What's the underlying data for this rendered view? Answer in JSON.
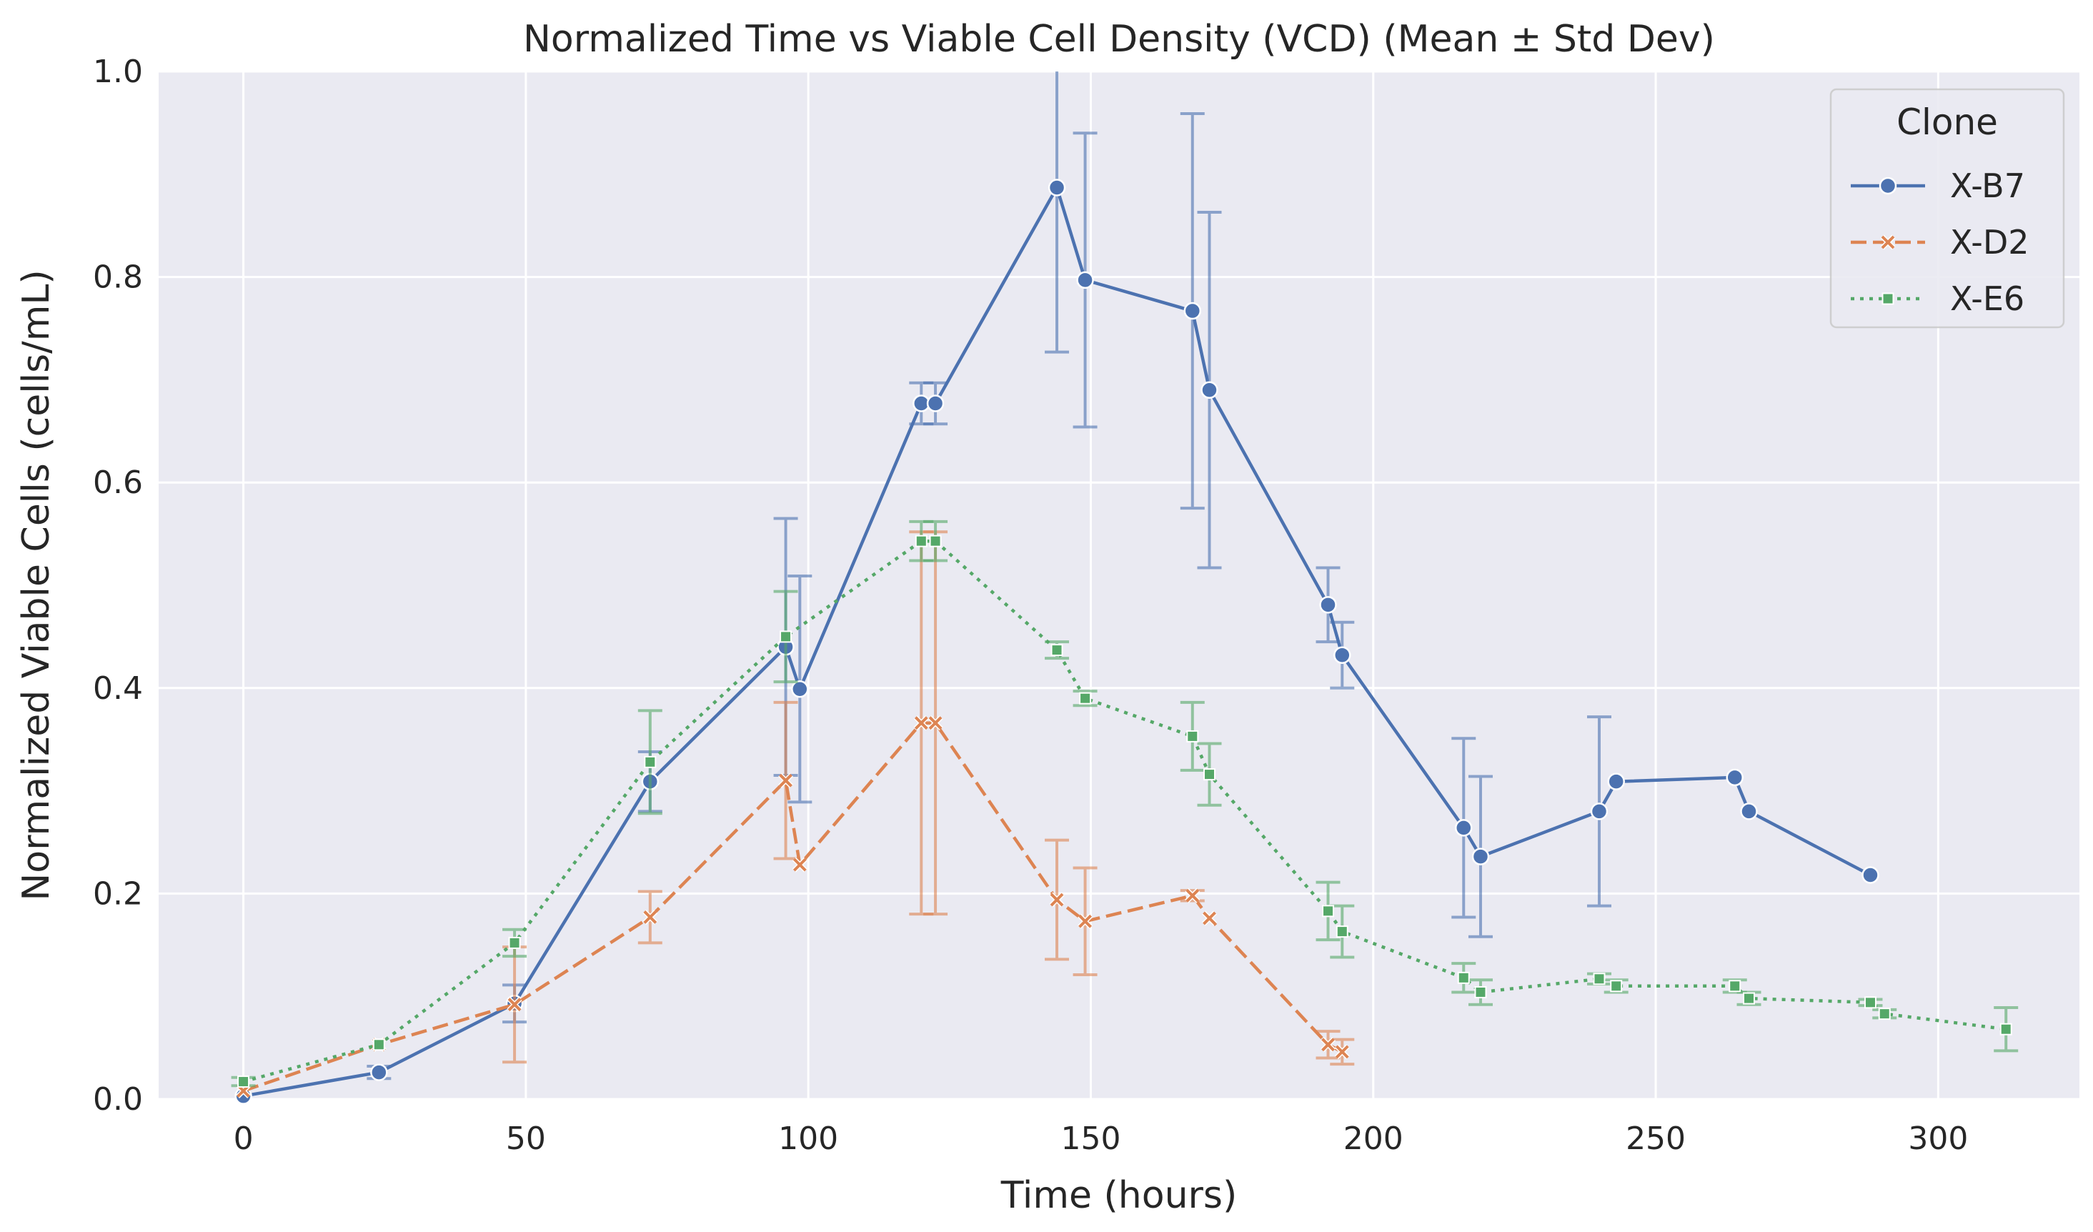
{
  "chart_data": {
    "type": "line",
    "title": "Normalized Time vs Viable Cell Density (VCD) (Mean ± Std Dev)",
    "xlabel": "Time (hours)",
    "ylabel": "Normalized Viable Cells (cells/mL)",
    "xlim": [
      -15,
      325
    ],
    "ylim": [
      0,
      1.0
    ],
    "xticks": [
      0,
      50,
      100,
      150,
      200,
      250,
      300
    ],
    "yticks": [
      0.0,
      0.2,
      0.4,
      0.6,
      0.8,
      1.0
    ],
    "xtick_labels": [
      "0",
      "50",
      "100",
      "150",
      "200",
      "250",
      "300"
    ],
    "ytick_labels": [
      "0.0",
      "0.2",
      "0.4",
      "0.6",
      "0.8",
      "1.0"
    ],
    "grid": true,
    "legend": {
      "title": "Clone",
      "position": "top-right"
    },
    "series": [
      {
        "name": "X-B7",
        "color": "#4c72b0",
        "marker": "circle",
        "linestyle": "solid",
        "x": [
          0,
          24,
          48,
          72,
          96,
          98.5,
          120,
          122.5,
          144,
          149,
          168,
          171,
          192,
          194.5,
          216,
          219,
          240,
          243,
          264,
          266.5,
          288
        ],
        "y": [
          0.003,
          0.026,
          0.093,
          0.309,
          0.44,
          0.399,
          0.677,
          0.677,
          0.887,
          0.797,
          0.767,
          0.69,
          0.481,
          0.432,
          0.264,
          0.236,
          0.28,
          0.309,
          0.313,
          0.28,
          0.218
        ],
        "err": [
          0,
          0.006,
          0.018,
          0.029,
          0.125,
          0.11,
          0.02,
          0.02,
          0.16,
          0.143,
          0.192,
          0.173,
          0.036,
          0.032,
          0.087,
          0.078,
          0.092,
          0,
          0,
          0,
          0
        ]
      },
      {
        "name": "X-D2",
        "color": "#dd8452",
        "marker": "x",
        "linestyle": "dashed",
        "x": [
          0,
          24,
          48,
          72,
          96,
          98.5,
          120,
          122.5,
          144,
          149,
          168,
          171,
          192,
          194.5
        ],
        "y": [
          0.008,
          0.053,
          0.092,
          0.177,
          0.31,
          0.228,
          0.366,
          0.366,
          0.194,
          0.173,
          0.198,
          0.176,
          0.053,
          0.046
        ],
        "err": [
          0,
          0,
          0.056,
          0.025,
          0.076,
          0,
          0.186,
          0.186,
          0.058,
          0.052,
          0.005,
          0,
          0.013,
          0.012
        ]
      },
      {
        "name": "X-E6",
        "color": "#55a868",
        "marker": "square",
        "linestyle": "dotted",
        "x": [
          0,
          24,
          48,
          72,
          96,
          120,
          122.5,
          144,
          149,
          168,
          171,
          192,
          194.5,
          216,
          219,
          240,
          243,
          264,
          266.5,
          288,
          290.5,
          312
        ],
        "y": [
          0.017,
          0.053,
          0.152,
          0.328,
          0.45,
          0.543,
          0.543,
          0.437,
          0.39,
          0.353,
          0.316,
          0.183,
          0.163,
          0.118,
          0.104,
          0.117,
          0.11,
          0.11,
          0.098,
          0.094,
          0.083,
          0.068
        ],
        "err": [
          0.004,
          0,
          0.013,
          0.05,
          0.044,
          0.019,
          0.019,
          0.008,
          0.007,
          0.033,
          0.03,
          0.028,
          0.025,
          0.014,
          0.012,
          0.005,
          0.006,
          0.006,
          0.006,
          0.003,
          0.004,
          0.021
        ]
      }
    ]
  }
}
